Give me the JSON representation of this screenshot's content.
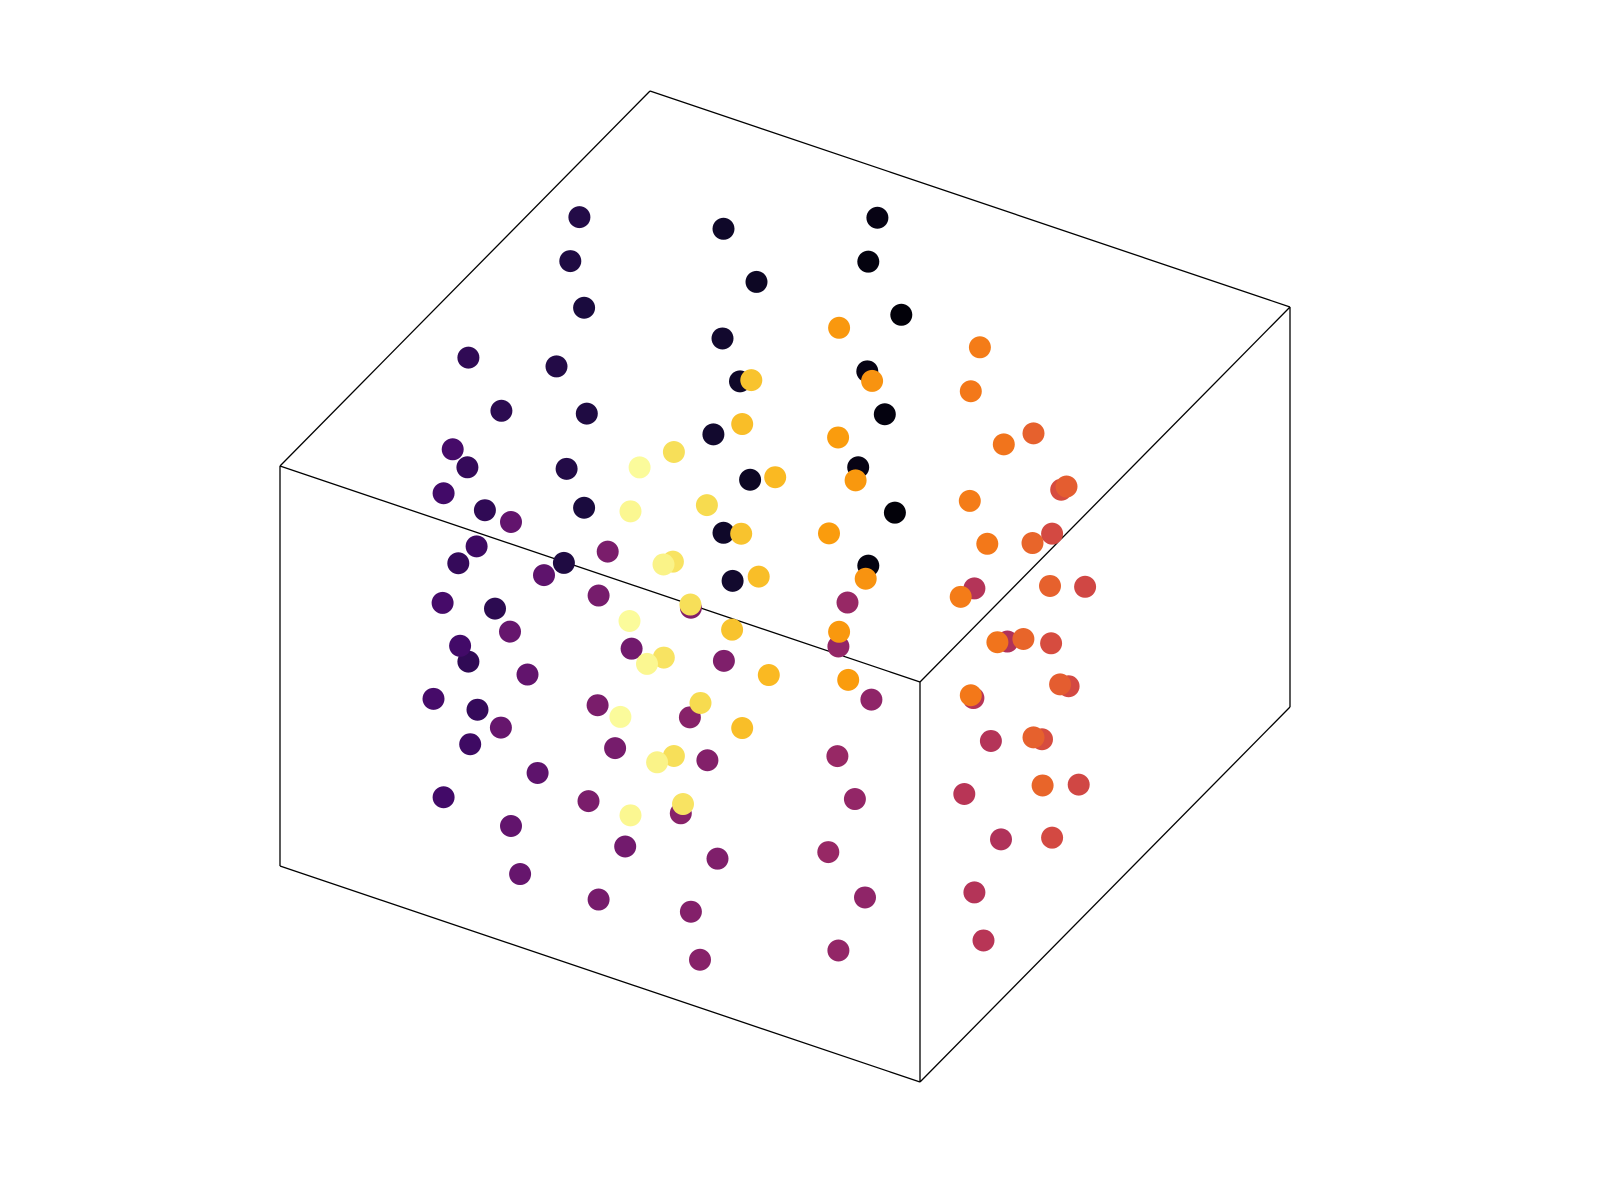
{
  "chart_data": {
    "type": "scatter3d",
    "xlim": [
      0,
      1
    ],
    "ylim": [
      0,
      1
    ],
    "zlim": [
      0,
      1
    ],
    "colormap": [
      "#000004",
      "#160b39",
      "#420a68",
      "#6a176e",
      "#932667",
      "#bc3754",
      "#dd513a",
      "#f37819",
      "#fca50a",
      "#f6d746",
      "#fcffa4"
    ],
    "x": [
      0.63,
      0.6,
      0.64,
      0.61,
      0.62,
      0.59,
      0.63,
      0.61,
      0.81,
      0.78,
      0.82,
      0.79,
      0.8,
      0.77,
      0.81,
      0.79,
      0.99,
      0.97,
      0.98,
      0.96,
      0.99,
      0.97,
      0.98,
      0.96,
      0.96,
      0.93,
      0.97,
      0.94,
      0.95,
      0.92,
      0.96,
      0.94,
      0.86,
      0.83,
      0.87,
      0.84,
      0.85,
      0.82,
      0.86,
      0.84,
      0.72,
      0.69,
      0.73,
      0.7,
      0.71,
      0.68,
      0.72,
      0.7,
      0.56,
      0.53,
      0.57,
      0.54,
      0.55,
      0.52,
      0.56,
      0.54,
      0.41,
      0.38,
      0.42,
      0.39,
      0.4,
      0.37,
      0.41,
      0.39,
      0.22,
      0.19,
      0.23,
      0.2,
      0.21,
      0.18,
      0.22,
      0.2,
      0.1,
      0.07,
      0.11,
      0.08,
      0.09,
      0.06,
      0.1,
      0.08,
      0.1,
      0.07,
      0.11,
      0.08,
      0.09,
      0.06,
      0.1,
      0.08,
      0.21,
      0.18,
      0.22,
      0.19,
      0.2,
      0.17,
      0.21,
      0.19,
      0.36,
      0.33,
      0.37,
      0.34,
      0.35,
      0.32,
      0.36,
      0.34,
      0.56,
      0.53,
      0.57,
      0.54,
      0.55,
      0.52,
      0.56,
      0.54,
      0.59,
      0.56,
      0.6,
      0.57,
      0.58,
      0.55,
      0.59,
      0.57,
      0.61,
      0.58,
      0.62,
      0.59,
      0.6,
      0.57,
      0.61,
      0.59,
      0.62,
      0.59,
      0.63,
      0.6,
      0.61,
      0.58,
      0.62,
      0.6
    ],
    "y": [
      0.95,
      0.97,
      0.94,
      0.96,
      0.93,
      0.97,
      0.95,
      0.94,
      0.87,
      0.89,
      0.86,
      0.88,
      0.85,
      0.89,
      0.87,
      0.86,
      0.75,
      0.77,
      0.74,
      0.76,
      0.73,
      0.77,
      0.75,
      0.74,
      0.44,
      0.46,
      0.43,
      0.45,
      0.42,
      0.46,
      0.44,
      0.43,
      0.2,
      0.22,
      0.19,
      0.21,
      0.18,
      0.22,
      0.2,
      0.19,
      0.14,
      0.16,
      0.13,
      0.15,
      0.12,
      0.16,
      0.14,
      0.13,
      0.1,
      0.12,
      0.09,
      0.11,
      0.08,
      0.12,
      0.1,
      0.09,
      0.09,
      0.11,
      0.08,
      0.1,
      0.07,
      0.11,
      0.09,
      0.08,
      0.16,
      0.18,
      0.15,
      0.17,
      0.14,
      0.18,
      0.16,
      0.15,
      0.32,
      0.34,
      0.31,
      0.33,
      0.3,
      0.34,
      0.32,
      0.31,
      0.53,
      0.55,
      0.52,
      0.54,
      0.51,
      0.55,
      0.53,
      0.52,
      0.67,
      0.69,
      0.66,
      0.68,
      0.65,
      0.69,
      0.67,
      0.66,
      0.76,
      0.78,
      0.75,
      0.77,
      0.74,
      0.78,
      0.76,
      0.75,
      0.75,
      0.77,
      0.74,
      0.76,
      0.73,
      0.77,
      0.75,
      0.74,
      0.54,
      0.56,
      0.53,
      0.55,
      0.52,
      0.56,
      0.54,
      0.53,
      0.39,
      0.41,
      0.38,
      0.4,
      0.37,
      0.41,
      0.39,
      0.38,
      0.29,
      0.31,
      0.28,
      0.3,
      0.27,
      0.31,
      0.29,
      0.28
    ],
    "z": [
      0.06,
      0.19,
      0.31,
      0.44,
      0.57,
      0.69,
      0.82,
      0.95,
      0.12,
      0.25,
      0.37,
      0.5,
      0.63,
      0.75,
      0.88,
      0.02,
      0.06,
      0.19,
      0.31,
      0.44,
      0.57,
      0.69,
      0.82,
      0.95,
      0.12,
      0.25,
      0.37,
      0.5,
      0.63,
      0.75,
      0.88,
      0.02,
      0.06,
      0.19,
      0.31,
      0.44,
      0.57,
      0.69,
      0.82,
      0.95,
      0.12,
      0.25,
      0.37,
      0.5,
      0.63,
      0.75,
      0.88,
      0.02,
      0.06,
      0.19,
      0.31,
      0.44,
      0.57,
      0.69,
      0.82,
      0.95,
      0.12,
      0.25,
      0.37,
      0.5,
      0.63,
      0.75,
      0.88,
      0.02,
      0.06,
      0.19,
      0.31,
      0.44,
      0.57,
      0.69,
      0.82,
      0.95,
      0.12,
      0.25,
      0.37,
      0.5,
      0.63,
      0.75,
      0.88,
      0.02,
      0.06,
      0.19,
      0.31,
      0.44,
      0.57,
      0.69,
      0.82,
      0.95,
      0.12,
      0.25,
      0.37,
      0.5,
      0.63,
      0.75,
      0.88,
      0.02,
      0.06,
      0.19,
      0.31,
      0.44,
      0.57,
      0.69,
      0.82,
      0.95,
      0.12,
      0.25,
      0.37,
      0.5,
      0.63,
      0.75,
      0.88,
      0.02,
      0.06,
      0.19,
      0.31,
      0.44,
      0.57,
      0.69,
      0.82,
      0.95,
      0.12,
      0.25,
      0.37,
      0.5,
      0.63,
      0.75,
      0.88,
      0.02,
      0.06,
      0.19,
      0.31,
      0.44,
      0.57,
      0.69,
      0.82,
      0.95
    ],
    "color_values": [
      0.02,
      0.01,
      0.03,
      0.02,
      0.03,
      0.01,
      0.02,
      0.03,
      0.07,
      0.06,
      0.08,
      0.07,
      0.08,
      0.06,
      0.07,
      0.08,
      0.12,
      0.11,
      0.13,
      0.12,
      0.13,
      0.11,
      0.12,
      0.13,
      0.16,
      0.15,
      0.17,
      0.16,
      0.17,
      0.15,
      0.16,
      0.17,
      0.2,
      0.19,
      0.21,
      0.2,
      0.21,
      0.19,
      0.2,
      0.21,
      0.28,
      0.27,
      0.29,
      0.28,
      0.29,
      0.27,
      0.28,
      0.29,
      0.33,
      0.32,
      0.34,
      0.33,
      0.34,
      0.32,
      0.33,
      0.34,
      0.36,
      0.35,
      0.37,
      0.36,
      0.37,
      0.35,
      0.36,
      0.37,
      0.4,
      0.39,
      0.41,
      0.4,
      0.41,
      0.39,
      0.4,
      0.41,
      0.48,
      0.47,
      0.49,
      0.48,
      0.49,
      0.47,
      0.48,
      0.49,
      0.57,
      0.56,
      0.58,
      0.57,
      0.58,
      0.56,
      0.57,
      0.58,
      0.64,
      0.63,
      0.65,
      0.64,
      0.65,
      0.63,
      0.64,
      0.65,
      0.7,
      0.69,
      0.71,
      0.7,
      0.71,
      0.69,
      0.7,
      0.71,
      0.77,
      0.76,
      0.78,
      0.77,
      0.78,
      0.76,
      0.77,
      0.78,
      0.85,
      0.84,
      0.86,
      0.85,
      0.86,
      0.84,
      0.85,
      0.86,
      0.92,
      0.91,
      0.93,
      0.92,
      0.93,
      0.91,
      0.92,
      0.93,
      0.98,
      0.97,
      0.99,
      0.98,
      0.99,
      0.97,
      0.98,
      0.99
    ]
  }
}
